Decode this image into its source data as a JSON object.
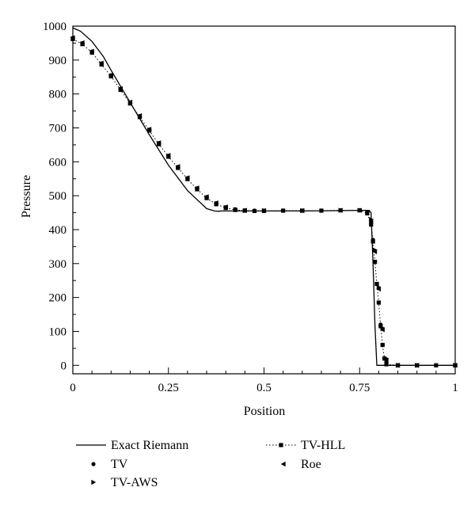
{
  "chart_data": {
    "type": "line",
    "title": "",
    "xlabel": "Position",
    "ylabel": "Pressure",
    "xlim": [
      0,
      1
    ],
    "ylim": [
      -25,
      1000
    ],
    "xticks": [
      0,
      0.25,
      0.5,
      0.75,
      1
    ],
    "xtick_labels": [
      "0",
      "0.25",
      "0.5",
      "0.75",
      "1"
    ],
    "yticks": [
      0,
      100,
      200,
      300,
      400,
      500,
      600,
      700,
      800,
      900,
      1000
    ],
    "ytick_labels": [
      "0",
      "100",
      "200",
      "300",
      "400",
      "500",
      "600",
      "700",
      "800",
      "900",
      "1000"
    ],
    "grid": false,
    "legend_placement": "bottom",
    "series": [
      {
        "name": "Exact Riemann",
        "style": "solid-line",
        "x": [
          0,
          0.02,
          0.05,
          0.08,
          0.1,
          0.15,
          0.2,
          0.25,
          0.3,
          0.35,
          0.37,
          0.38,
          0.39,
          0.4,
          0.5,
          0.6,
          0.7,
          0.75,
          0.775,
          0.78,
          0.785,
          0.79,
          0.795,
          0.8,
          0.9,
          1.0
        ],
        "y": [
          995,
          985,
          955,
          910,
          870,
          775,
          680,
          590,
          515,
          462,
          455,
          454,
          455,
          455,
          455,
          455,
          456,
          457,
          457,
          450,
          300,
          120,
          0,
          0,
          0,
          0
        ]
      },
      {
        "name": "TV",
        "style": "circle-markers",
        "x": [
          0,
          0.025,
          0.05,
          0.075,
          0.1,
          0.125,
          0.15,
          0.175,
          0.2,
          0.225,
          0.25,
          0.275,
          0.3,
          0.325,
          0.35,
          0.375,
          0.4,
          0.425,
          0.45,
          0.475,
          0.5,
          0.55,
          0.6,
          0.65,
          0.7,
          0.75,
          0.77,
          0.78,
          0.785,
          0.79,
          0.795,
          0.8,
          0.805,
          0.81,
          0.82,
          0.85,
          0.9,
          0.95,
          1.0
        ],
        "y": [
          965,
          950,
          925,
          890,
          855,
          815,
          775,
          735,
          695,
          655,
          618,
          585,
          552,
          522,
          496,
          478,
          466,
          460,
          457,
          456,
          456,
          456,
          456,
          456,
          457,
          457,
          450,
          420,
          370,
          305,
          240,
          185,
          120,
          60,
          10,
          0,
          0,
          0,
          0
        ]
      },
      {
        "name": "TV-AWS",
        "style": "right-triangle-markers",
        "x": [
          0,
          0.025,
          0.05,
          0.075,
          0.1,
          0.125,
          0.15,
          0.175,
          0.2,
          0.225,
          0.25,
          0.275,
          0.3,
          0.325,
          0.35,
          0.375,
          0.4,
          0.425,
          0.45,
          0.5,
          0.6,
          0.7,
          0.75,
          0.77,
          0.78,
          0.79,
          0.8,
          0.81,
          0.82,
          0.85,
          0.9,
          1.0
        ],
        "y": [
          963,
          948,
          923,
          888,
          853,
          813,
          773,
          733,
          693,
          653,
          616,
          583,
          550,
          520,
          494,
          476,
          465,
          459,
          456,
          456,
          456,
          457,
          457,
          452,
          430,
          340,
          230,
          110,
          20,
          0,
          0,
          0
        ]
      },
      {
        "name": "TV-HLL",
        "style": "dotted-line-square-markers",
        "x": [
          0,
          0.025,
          0.05,
          0.075,
          0.1,
          0.125,
          0.15,
          0.175,
          0.2,
          0.225,
          0.25,
          0.275,
          0.3,
          0.325,
          0.35,
          0.375,
          0.4,
          0.425,
          0.45,
          0.475,
          0.5,
          0.55,
          0.6,
          0.65,
          0.7,
          0.75,
          0.77,
          0.78,
          0.785,
          0.79,
          0.795,
          0.8,
          0.805,
          0.81,
          0.815,
          0.82,
          0.85,
          0.9,
          0.95,
          1.0
        ],
        "y": [
          962,
          947,
          922,
          887,
          852,
          812,
          772,
          732,
          692,
          652,
          615,
          582,
          549,
          519,
          493,
          475,
          464,
          458,
          456,
          455,
          455,
          456,
          456,
          456,
          457,
          457,
          448,
          415,
          365,
          305,
          240,
          185,
          115,
          60,
          20,
          3,
          0,
          0,
          0,
          0
        ]
      },
      {
        "name": "Roe",
        "style": "left-triangle-markers",
        "x": [
          0,
          0.025,
          0.05,
          0.075,
          0.1,
          0.125,
          0.15,
          0.175,
          0.2,
          0.225,
          0.25,
          0.275,
          0.3,
          0.325,
          0.35,
          0.375,
          0.4,
          0.45,
          0.5,
          0.6,
          0.7,
          0.75,
          0.77,
          0.78,
          0.79,
          0.8,
          0.81,
          0.82,
          0.85,
          0.9,
          1.0
        ],
        "y": [
          966,
          951,
          926,
          891,
          856,
          816,
          776,
          736,
          696,
          656,
          619,
          586,
          553,
          523,
          497,
          479,
          467,
          457,
          456,
          456,
          457,
          457,
          451,
          425,
          335,
          225,
          105,
          15,
          0,
          0,
          0
        ]
      }
    ]
  }
}
